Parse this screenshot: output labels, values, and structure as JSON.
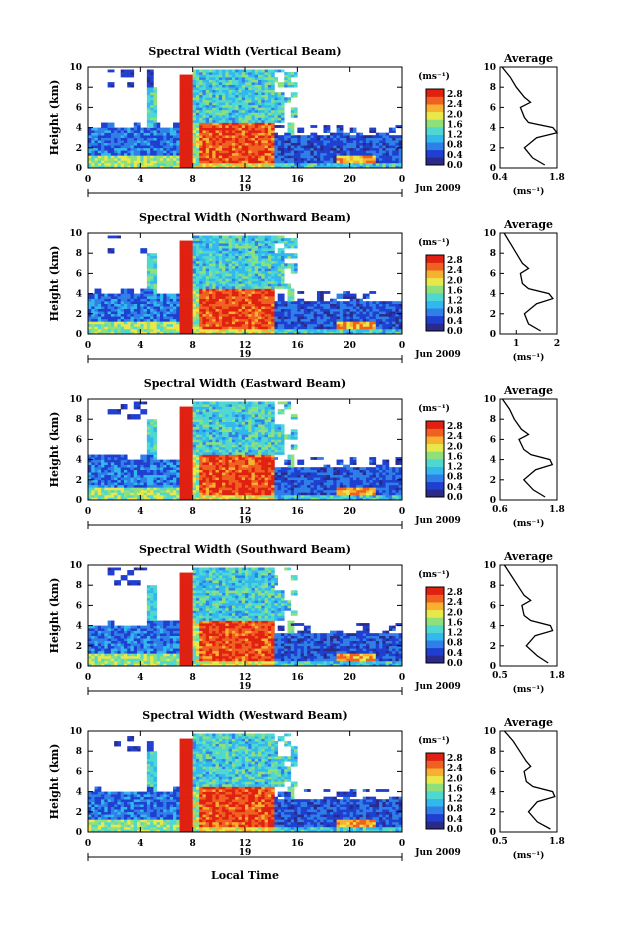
{
  "figure": {
    "x_axis_title": "Local Time",
    "date_label": "Jun 2009",
    "day_label": "19"
  },
  "chart_data": [
    {
      "type": "heatmap",
      "title": "Spectral Width (Vertical Beam)",
      "ylabel": "Height (km)",
      "xlabel": "Local Time",
      "x_ticks": [
        "0",
        "4",
        "8",
        "12",
        "16",
        "20",
        "0"
      ],
      "y_ticks": [
        "0",
        "2",
        "4",
        "6",
        "8",
        "10"
      ],
      "xlim": [
        0,
        24
      ],
      "ylim": [
        0,
        10
      ],
      "colorbar": {
        "unit": "(ms⁻¹)",
        "ticks": [
          "0.0",
          "0.4",
          "0.8",
          "1.2",
          "1.6",
          "2.0",
          "2.4",
          "2.8"
        ],
        "range": [
          0,
          3.0
        ]
      },
      "profile": {
        "title": "Average",
        "xlabel": "(ms⁻¹)",
        "x_ticks": [
          "0.4",
          "1.8"
        ],
        "xlim": [
          0.4,
          1.8
        ],
        "height": [
          0.3,
          1,
          2,
          3,
          3.5,
          4,
          4.5,
          5,
          6,
          6.5,
          7,
          8,
          9,
          10
        ],
        "value": [
          1.5,
          1.2,
          1.0,
          1.3,
          1.8,
          1.7,
          1.1,
          1.0,
          0.9,
          1.15,
          1.0,
          0.8,
          0.65,
          0.45
        ]
      }
    },
    {
      "type": "heatmap",
      "title": "Spectral Width (Northward Beam)",
      "ylabel": "Height (km)",
      "xlabel": "Local Time",
      "x_ticks": [
        "0",
        "4",
        "8",
        "12",
        "16",
        "20",
        "0"
      ],
      "y_ticks": [
        "0",
        "2",
        "4",
        "6",
        "8",
        "10"
      ],
      "xlim": [
        0,
        24
      ],
      "ylim": [
        0,
        10
      ],
      "colorbar": {
        "unit": "(ms⁻¹)",
        "ticks": [
          "0.0",
          "0.4",
          "0.8",
          "1.2",
          "1.6",
          "2.0",
          "2.4",
          "2.8"
        ],
        "range": [
          0,
          3.0
        ]
      },
      "profile": {
        "title": "Average",
        "xlabel": "(ms⁻¹)",
        "x_ticks": [
          "1",
          "2"
        ],
        "xlim": [
          0.6,
          2.0
        ],
        "height": [
          0.3,
          1,
          2,
          3,
          3.5,
          4,
          4.5,
          5,
          6,
          6.5,
          7,
          8,
          9,
          10
        ],
        "value": [
          1.6,
          1.3,
          1.2,
          1.5,
          1.9,
          1.8,
          1.3,
          1.15,
          1.1,
          1.3,
          1.15,
          1.0,
          0.85,
          0.7
        ]
      }
    },
    {
      "type": "heatmap",
      "title": "Spectral Width (Eastward Beam)",
      "ylabel": "Height (km)",
      "xlabel": "Local Time",
      "x_ticks": [
        "0",
        "4",
        "8",
        "12",
        "16",
        "20",
        "0"
      ],
      "y_ticks": [
        "0",
        "2",
        "4",
        "6",
        "8",
        "10"
      ],
      "xlim": [
        0,
        24
      ],
      "ylim": [
        0,
        10
      ],
      "colorbar": {
        "unit": "(ms⁻¹)",
        "ticks": [
          "0.0",
          "0.4",
          "0.8",
          "1.2",
          "1.6",
          "2.0",
          "2.4",
          "2.8"
        ],
        "range": [
          0,
          3.0
        ]
      },
      "profile": {
        "title": "Average",
        "xlabel": "(ms⁻¹)",
        "x_ticks": [
          "0.6",
          "1.8"
        ],
        "xlim": [
          0.6,
          1.8
        ],
        "height": [
          0.3,
          1,
          2,
          3,
          3.5,
          4,
          4.5,
          5,
          6,
          6.5,
          7,
          8,
          9,
          10
        ],
        "value": [
          1.55,
          1.3,
          1.1,
          1.35,
          1.7,
          1.65,
          1.25,
          1.1,
          1.0,
          1.2,
          1.05,
          0.9,
          0.8,
          0.65
        ]
      }
    },
    {
      "type": "heatmap",
      "title": "Spectral Width (Southward Beam)",
      "ylabel": "Height (km)",
      "xlabel": "Local Time",
      "x_ticks": [
        "0",
        "4",
        "8",
        "12",
        "16",
        "20",
        "0"
      ],
      "y_ticks": [
        "0",
        "2",
        "4",
        "6",
        "8",
        "10"
      ],
      "xlim": [
        0,
        24
      ],
      "ylim": [
        0,
        10
      ],
      "colorbar": {
        "unit": "(ms⁻¹)",
        "ticks": [
          "0.0",
          "0.4",
          "0.8",
          "1.2",
          "1.6",
          "2.0",
          "2.4",
          "2.8"
        ],
        "range": [
          0,
          3.0
        ]
      },
      "profile": {
        "title": "Average",
        "xlabel": "(ms⁻¹)",
        "x_ticks": [
          "0.5",
          "1.8"
        ],
        "xlim": [
          0.5,
          1.8
        ],
        "height": [
          0.3,
          1,
          2,
          3,
          3.5,
          4,
          4.5,
          5,
          6,
          6.5,
          7,
          8,
          9,
          10
        ],
        "value": [
          1.6,
          1.35,
          1.1,
          1.3,
          1.7,
          1.65,
          1.2,
          1.05,
          1.0,
          1.2,
          1.05,
          0.9,
          0.75,
          0.6
        ]
      }
    },
    {
      "type": "heatmap",
      "title": "Spectral Width (Westward Beam)",
      "ylabel": "Height (km)",
      "xlabel": "Local Time",
      "x_ticks": [
        "0",
        "4",
        "8",
        "12",
        "16",
        "20",
        "0"
      ],
      "y_ticks": [
        "0",
        "2",
        "4",
        "6",
        "8",
        "10"
      ],
      "xlim": [
        0,
        24
      ],
      "ylim": [
        0,
        10
      ],
      "colorbar": {
        "unit": "(ms⁻¹)",
        "ticks": [
          "0.0",
          "0.4",
          "0.8",
          "1.2",
          "1.6",
          "2.0",
          "2.4",
          "2.8"
        ],
        "range": [
          0,
          3.0
        ]
      },
      "profile": {
        "title": "Average",
        "xlabel": "(ms⁻¹)",
        "x_ticks": [
          "0.5",
          "1.8"
        ],
        "xlim": [
          0.5,
          1.8
        ],
        "height": [
          0.3,
          1,
          2,
          3,
          3.5,
          4,
          4.5,
          5,
          6,
          6.5,
          7,
          8,
          9,
          10
        ],
        "value": [
          1.65,
          1.35,
          1.15,
          1.35,
          1.75,
          1.7,
          1.25,
          1.1,
          1.05,
          1.2,
          1.1,
          0.95,
          0.8,
          0.6
        ]
      }
    }
  ],
  "colors": {
    "colormap": [
      "#2a2a8a",
      "#1f3fd0",
      "#2f7fe8",
      "#33b8ee",
      "#4fd8d0",
      "#8fe07a",
      "#e8e84a",
      "#f8b030",
      "#f06020",
      "#e02010"
    ]
  }
}
